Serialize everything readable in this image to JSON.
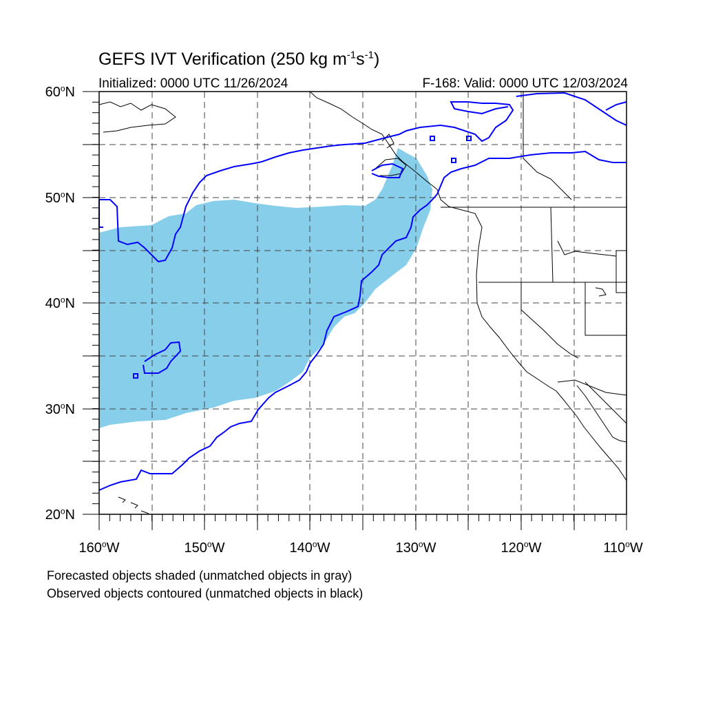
{
  "title": {
    "text": "GEFS IVT Verification (250 kg m",
    "sup1": "-1",
    "mid": "s",
    "sup2": "-1",
    "end": ")"
  },
  "initialized": "Initialized: 0000 UTC 11/26/2024",
  "valid": "F-168: Valid: 0000 UTC 12/03/2024",
  "latitudes": [
    {
      "deg": "60",
      "hemi": "N"
    },
    {
      "deg": "50",
      "hemi": "N"
    },
    {
      "deg": "40",
      "hemi": "N"
    },
    {
      "deg": "30",
      "hemi": "N"
    },
    {
      "deg": "20",
      "hemi": "N"
    }
  ],
  "longitudes": [
    {
      "deg": "160",
      "hemi": "W"
    },
    {
      "deg": "150",
      "hemi": "W"
    },
    {
      "deg": "140",
      "hemi": "W"
    },
    {
      "deg": "130",
      "hemi": "W"
    },
    {
      "deg": "120",
      "hemi": "W"
    },
    {
      "deg": "110",
      "hemi": "W"
    }
  ],
  "notes": {
    "forecast": "Forecasted objects shaded (unmatched objects in gray)",
    "observed": "Observed objects contoured (unmatched objects in black)"
  },
  "map": {
    "lon_range": [
      -160,
      -110
    ],
    "lat_range": [
      20,
      60
    ],
    "forecast_color": "#87ceeb",
    "observed_color": "#0000ff",
    "coast_color": "#000000"
  }
}
